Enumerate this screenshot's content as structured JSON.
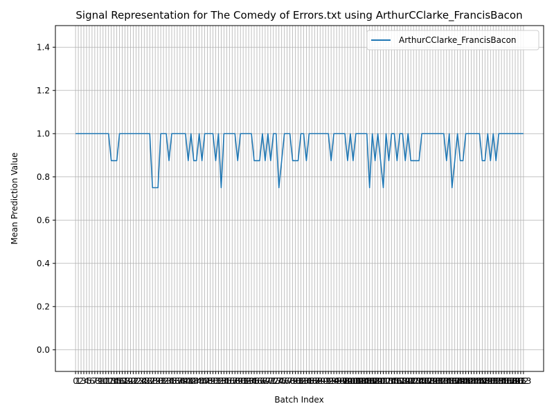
{
  "chart_data": {
    "type": "line",
    "title": "Signal Representation for The Comedy of Errors.txt using ArthurCClarke_FrancisBacon",
    "xlabel": "Batch Index",
    "ylabel": "Mean Prediction Value",
    "xlim": [
      0,
      163
    ],
    "ylim": [
      -0.1,
      1.5
    ],
    "yticks": [
      0.0,
      0.2,
      0.4,
      0.6,
      0.8,
      1.0,
      1.2,
      1.4
    ],
    "xticks_step": 1,
    "grid": true,
    "legend_position": "top-right",
    "colors": {
      "series": "#1f77b4"
    },
    "series": [
      {
        "name": "ArthurCClarke_FrancisBacon",
        "values": [
          1,
          1,
          1,
          1,
          1,
          1,
          1,
          1,
          1,
          1,
          1,
          1,
          1,
          0.875,
          0.875,
          0.875,
          1,
          1,
          1,
          1,
          1,
          1,
          1,
          1,
          1,
          1,
          1,
          1,
          0.75,
          0.75,
          0.75,
          1,
          1,
          1,
          0.875,
          1,
          1,
          1,
          1,
          1,
          1,
          0.875,
          1,
          0.875,
          0.875,
          1,
          0.875,
          1,
          1,
          1,
          1,
          0.875,
          1,
          0.75,
          1,
          1,
          1,
          1,
          1,
          0.875,
          1,
          1,
          1,
          1,
          1,
          0.875,
          0.875,
          0.875,
          1,
          0.875,
          1,
          0.875,
          1,
          1,
          0.75,
          0.875,
          1,
          1,
          1,
          0.875,
          0.875,
          0.875,
          1,
          1,
          0.875,
          1,
          1,
          1,
          1,
          1,
          1,
          1,
          1,
          0.875,
          1,
          1,
          1,
          1,
          1,
          0.875,
          1,
          0.875,
          1,
          1,
          1,
          1,
          1,
          0.75,
          1,
          0.875,
          1,
          0.875,
          0.75,
          1,
          0.875,
          1,
          1,
          0.875,
          1,
          1,
          0.875,
          1,
          0.875,
          0.875,
          0.875,
          0.875,
          1,
          1,
          1,
          1,
          1,
          1,
          1,
          1,
          1,
          0.875,
          1,
          0.75,
          0.875,
          1,
          0.875,
          0.875,
          1,
          1,
          1,
          1,
          1,
          1,
          0.875,
          0.875,
          1,
          0.875,
          1,
          0.875,
          1,
          1,
          1,
          1,
          1,
          1,
          1,
          1,
          1,
          1
        ]
      }
    ]
  }
}
